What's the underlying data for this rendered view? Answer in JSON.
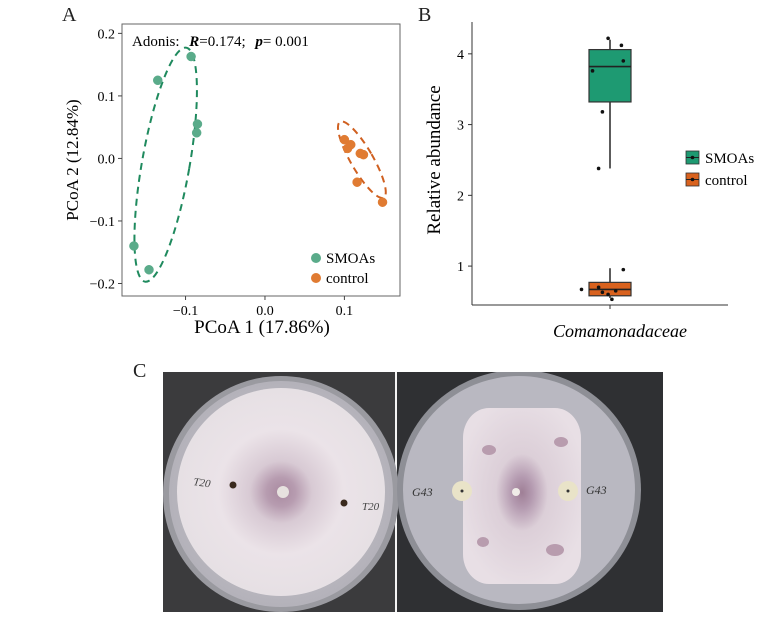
{
  "panels": {
    "a": "A",
    "b": "B",
    "c": "C"
  },
  "chart_data": [
    {
      "type": "scatter",
      "panel": "A",
      "annotation": {
        "prefix": "Adonis:",
        "r_label": "R",
        "r_value": "=0.174;",
        "p_label": "p",
        "p_value": "= 0.001"
      },
      "xlabel": "PCoA 1 (17.86%)",
      "ylabel": "PCoA 2 (12.84%)",
      "xlim": [
        -0.18,
        0.17
      ],
      "ylim": [
        -0.22,
        0.215
      ],
      "x_ticks": [
        -0.1,
        0.0,
        0.1
      ],
      "x_tick_labels": [
        "−0.1",
        "0.0",
        "0.1"
      ],
      "y_ticks": [
        -0.2,
        -0.1,
        0.0,
        0.1,
        0.2
      ],
      "y_tick_labels": [
        "−0.2",
        "−0.1",
        "0.0",
        "0.1",
        "0.2"
      ],
      "grid": false,
      "legend_position": "bottom-right",
      "series": [
        {
          "name": "SMOAs",
          "color": "#5aab8a",
          "ellipse_color": "#1f8a5e",
          "x": [
            -0.165,
            -0.146,
            -0.135,
            -0.093,
            -0.085,
            -0.086
          ],
          "y": [
            -0.14,
            -0.178,
            0.125,
            0.163,
            0.055,
            0.041
          ]
        },
        {
          "name": "control",
          "color": "#e07b32",
          "ellipse_color": "#d06020",
          "x": [
            0.1,
            0.108,
            0.12,
            0.124,
            0.116,
            0.148,
            0.104
          ],
          "y": [
            0.03,
            0.022,
            0.008,
            0.006,
            -0.038,
            -0.07,
            0.016
          ]
        }
      ],
      "ellipses": [
        {
          "series": "SMOAs",
          "cx": -0.125,
          "cy": -0.01,
          "rx": 0.03,
          "ry": 0.19,
          "rotation_deg": 10
        },
        {
          "series": "control",
          "cx": 0.122,
          "cy": -0.002,
          "rx": 0.014,
          "ry": 0.07,
          "rotation_deg": -30
        }
      ]
    },
    {
      "type": "box",
      "panel": "B",
      "ylabel": "Relative abundance",
      "xlabel": "Comamonadaceae",
      "ylim": [
        0.45,
        4.45
      ],
      "y_ticks": [
        1,
        2,
        3,
        4
      ],
      "y_tick_labels": [
        "1",
        "2",
        "3",
        "4"
      ],
      "legend_position": "right",
      "boxes": [
        {
          "name": "SMOAs",
          "color": "#1e9a72",
          "min": 2.38,
          "q1": 3.32,
          "median": 3.82,
          "q3": 4.06,
          "max": 4.2,
          "points": [
            {
              "x": -0.3,
              "y": 2.38
            },
            {
              "x": -0.2,
              "y": 3.18
            },
            {
              "x": -0.46,
              "y": 3.76
            },
            {
              "x": 0.35,
              "y": 3.9
            },
            {
              "x": 0.3,
              "y": 4.12
            },
            {
              "x": -0.05,
              "y": 4.22
            }
          ]
        },
        {
          "name": "control",
          "color": "#d9621e",
          "min": 0.55,
          "q1": 0.58,
          "median": 0.67,
          "q3": 0.77,
          "max": 0.97,
          "points": [
            {
              "x": -0.75,
              "y": 0.67
            },
            {
              "x": -0.2,
              "y": 0.63
            },
            {
              "x": -0.05,
              "y": 0.6
            },
            {
              "x": 0.05,
              "y": 0.53
            },
            {
              "x": 0.15,
              "y": 0.65
            },
            {
              "x": 0.35,
              "y": 0.95
            },
            {
              "x": -0.3,
              "y": 0.7
            }
          ]
        }
      ]
    }
  ],
  "photo": {
    "left_plate_labels": [
      "T20",
      "T20"
    ],
    "right_plate_labels": [
      "G43",
      "G43"
    ]
  }
}
